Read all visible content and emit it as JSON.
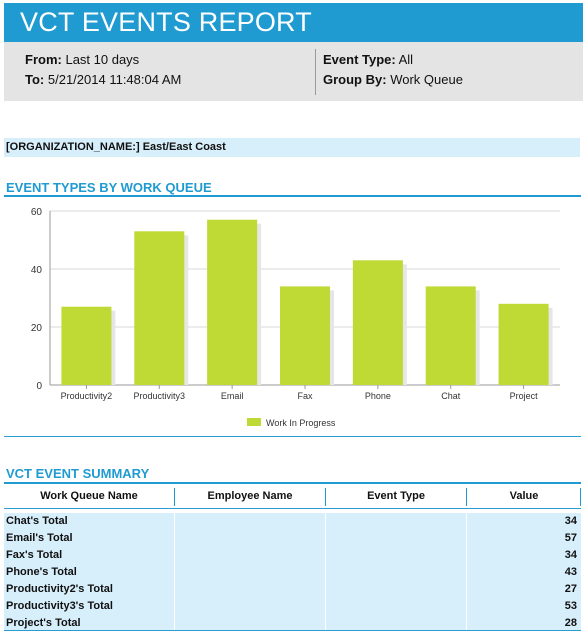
{
  "report": {
    "title": "VCT EVENTS REPORT"
  },
  "filters": {
    "from_label": "From:",
    "from_value": "Last 10 days",
    "to_label": "To:",
    "to_value": "5/21/2014 11:48:04 AM",
    "event_type_label": "Event Type:",
    "event_type_value": "All",
    "group_by_label": "Group By:",
    "group_by_value": "Work Queue"
  },
  "organization": {
    "label": "[ORGANIZATION_NAME:]",
    "value": "East/East Coast"
  },
  "chart_section": {
    "title": "EVENT TYPES BY WORK QUEUE"
  },
  "chart_data": {
    "type": "bar",
    "categories": [
      "Productivity2",
      "Productivity3",
      "Email",
      "Fax",
      "Phone",
      "Chat",
      "Project"
    ],
    "series": [
      {
        "name": "Work In Progress",
        "values": [
          27,
          53,
          57,
          34,
          43,
          34,
          28
        ]
      }
    ],
    "yticks": [
      "0",
      "20",
      "40",
      "60"
    ],
    "ylim": [
      0,
      60
    ],
    "grid": true,
    "legend": "bottom-center",
    "bar_color": "#bfd935"
  },
  "summary": {
    "title": "VCT EVENT SUMMARY",
    "columns": [
      "Work Queue Name",
      "Employee Name",
      "Event Type",
      "Value"
    ],
    "rows": [
      {
        "name": "Chat's Total",
        "value": "34"
      },
      {
        "name": "Email's Total",
        "value": "57"
      },
      {
        "name": "Fax's Total",
        "value": "34"
      },
      {
        "name": "Phone's Total",
        "value": "43"
      },
      {
        "name": "Productivity2's Total",
        "value": "27"
      },
      {
        "name": "Productivity3's Total",
        "value": "53"
      },
      {
        "name": "Project's Total",
        "value": "28"
      }
    ]
  },
  "colors": {
    "accent": "#1f9bd1",
    "header_bg": "#e4e4e4",
    "row_bg": "#d7eefb"
  }
}
